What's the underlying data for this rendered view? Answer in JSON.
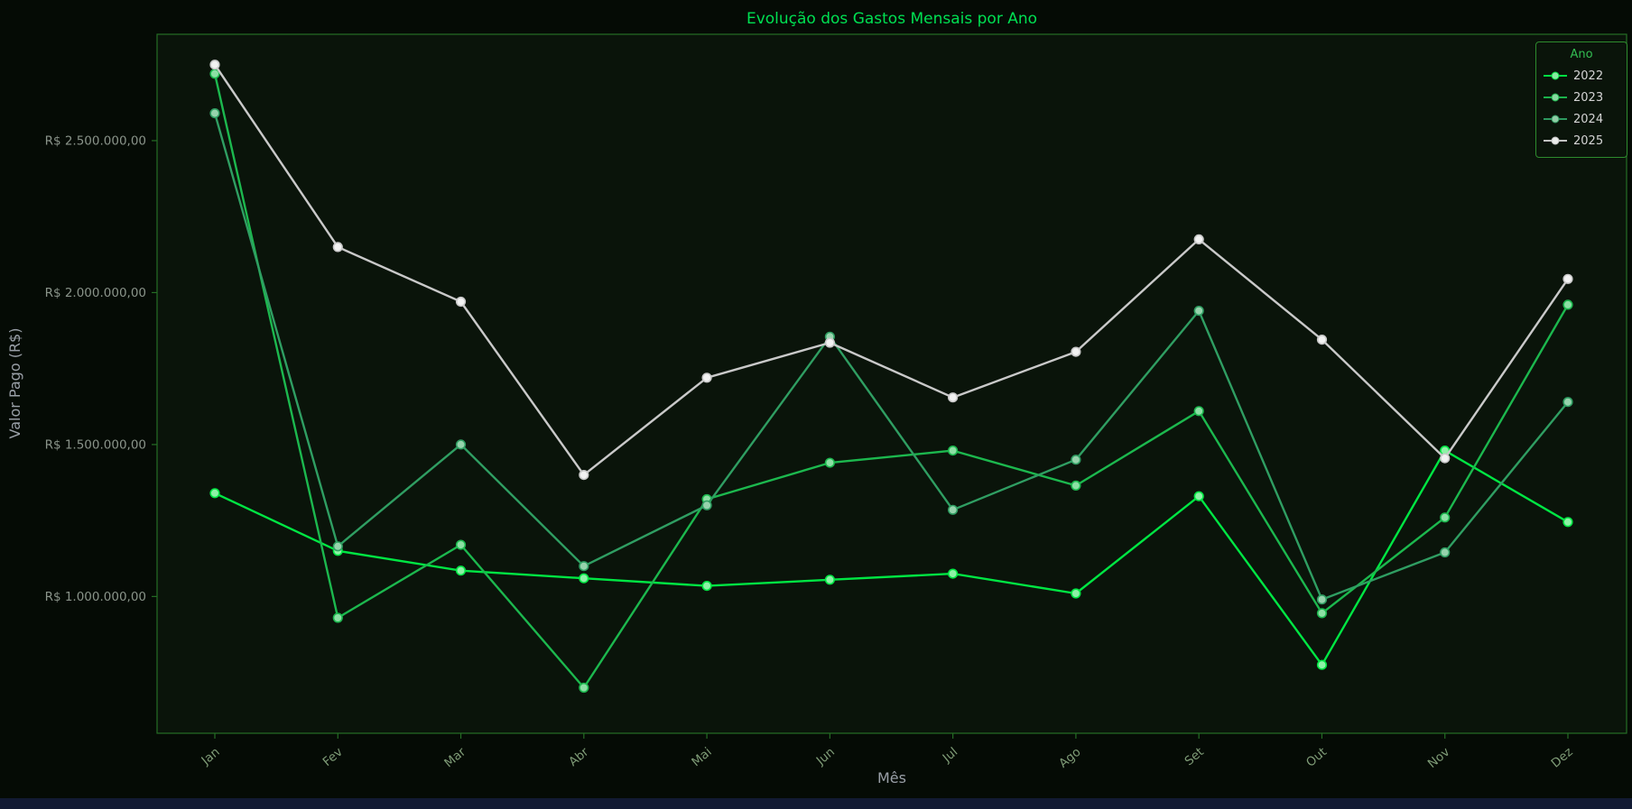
{
  "colors": {
    "background": "#050b05",
    "plot_background": "#0a140a",
    "title": "#00e052",
    "axis_label": "#9aa0a8",
    "tick_label": "#8a948a",
    "month_label": "#7f9c77",
    "spine": "#256d25",
    "legend_border": "#2f8f2f",
    "legend_background": "#0a140a",
    "legend_title": "#35c455",
    "legend_text": "#dcdcdc",
    "bottom_bar": "#121a33"
  },
  "chart_data": {
    "type": "line",
    "title": "Evolução dos Gastos Mensais por Ano",
    "xlabel": "Mês",
    "ylabel": "Valor Pago (R$)",
    "categories": [
      "Jan",
      "Fev",
      "Mar",
      "Abr",
      "Mai",
      "Jun",
      "Jul",
      "Ago",
      "Set",
      "Out",
      "Nov",
      "Dez"
    ],
    "ylim": [
      550000,
      2850000
    ],
    "grid": "off",
    "legend_title": "Ano",
    "legend_position": "upper right",
    "y_ticks": [
      {
        "value": 1000000,
        "label": "R$ 1.000.000,00"
      },
      {
        "value": 1500000,
        "label": "R$ 1.500.000,00"
      },
      {
        "value": 2000000,
        "label": "R$ 2.000.000,00"
      },
      {
        "value": 2500000,
        "label": "R$ 2.500.000,00"
      }
    ],
    "series": [
      {
        "name": "2022",
        "color": "#00e643",
        "marker_fill": "#8df2a6",
        "values": [
          1340000,
          1150000,
          1085000,
          1060000,
          1035000,
          1055000,
          1075000,
          1010000,
          1330000,
          775000,
          1480000,
          1245000
        ]
      },
      {
        "name": "2023",
        "color": "#1cb84e",
        "marker_fill": "#8ce0a4",
        "values": [
          2720000,
          930000,
          1170000,
          700000,
          1320000,
          1440000,
          1480000,
          1365000,
          1610000,
          945000,
          1260000,
          1960000
        ]
      },
      {
        "name": "2024",
        "color": "#2f9e62",
        "marker_fill": "#96d3ac",
        "values": [
          2590000,
          1165000,
          1500000,
          1100000,
          1300000,
          1855000,
          1285000,
          1450000,
          1940000,
          990000,
          1145000,
          1640000
        ]
      },
      {
        "name": "2025",
        "color": "#c9c9c9",
        "marker_fill": "#f2f2f2",
        "values": [
          2750000,
          2150000,
          1970000,
          1400000,
          1720000,
          1835000,
          1655000,
          1805000,
          2175000,
          1845000,
          1455000,
          2045000
        ]
      }
    ]
  }
}
